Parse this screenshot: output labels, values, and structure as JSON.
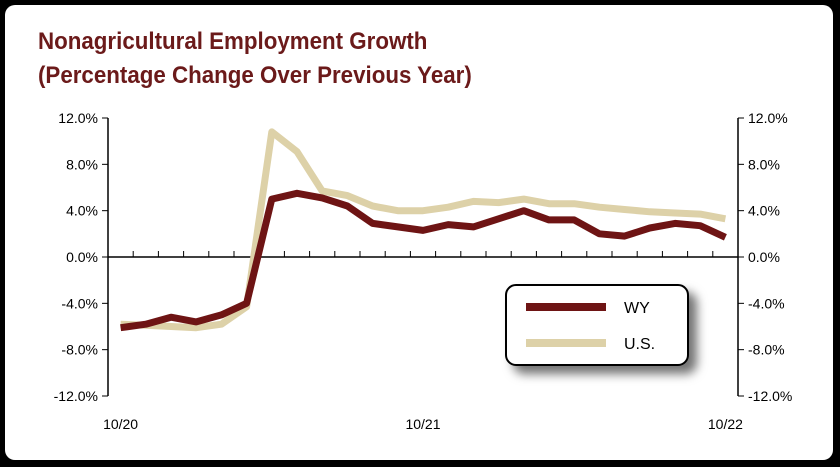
{
  "chart_data": {
    "type": "line",
    "title_lines": [
      "Nonagricultural Employment Growth",
      "(Percentage Change Over Previous Year)"
    ],
    "xlabel": "",
    "ylabel": "",
    "x_tick_labels": [
      "10/20",
      "10/21",
      "10/22"
    ],
    "y_tick_labels": [
      "12.0%",
      "8.0%",
      "4.0%",
      "0.0%",
      "-4.0%",
      "-8.0%",
      "-12.0%"
    ],
    "ylim": [
      -12,
      12
    ],
    "x_months": [
      "10/20",
      "11/20",
      "12/20",
      "1/21",
      "2/21",
      "3/21",
      "4/21",
      "5/21",
      "6/21",
      "7/21",
      "8/21",
      "9/21",
      "10/21",
      "11/21",
      "12/21",
      "1/22",
      "2/22",
      "3/22",
      "4/22",
      "5/22",
      "6/22",
      "7/22",
      "8/22",
      "9/22",
      "10/22"
    ],
    "grid": false,
    "legend_position": "bottom-right",
    "series": [
      {
        "name": "WY",
        "color": "#6e1414",
        "values": [
          -6.1,
          -5.8,
          -5.2,
          -5.6,
          -5.0,
          -4.0,
          5.0,
          5.5,
          5.1,
          4.4,
          2.9,
          2.6,
          2.3,
          2.8,
          2.6,
          3.3,
          4.0,
          3.2,
          3.2,
          2.0,
          1.8,
          2.5,
          2.9,
          2.7,
          1.7
        ]
      },
      {
        "name": "U.S.",
        "color": "#ddd1a8",
        "values": [
          -5.8,
          -5.9,
          -6.0,
          -6.1,
          -5.8,
          -4.3,
          10.8,
          9.1,
          5.7,
          5.3,
          4.4,
          4.0,
          4.0,
          4.3,
          4.8,
          4.7,
          5.0,
          4.6,
          4.6,
          4.3,
          4.1,
          3.9,
          3.8,
          3.7,
          3.3
        ]
      }
    ]
  }
}
